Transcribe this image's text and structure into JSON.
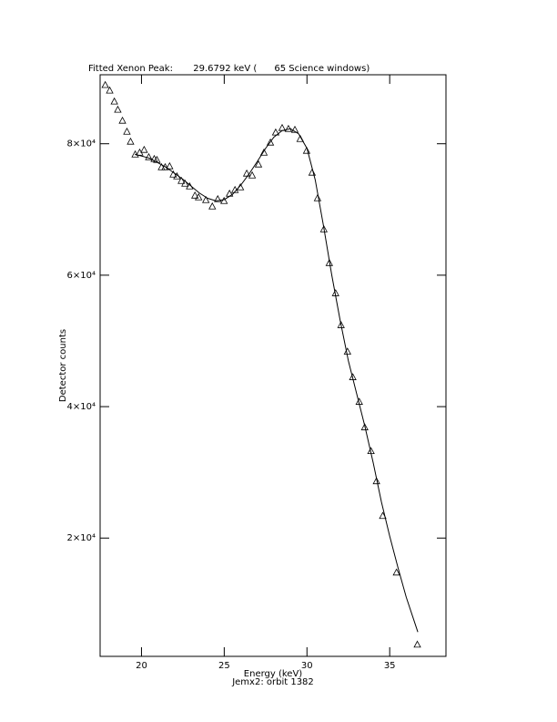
{
  "chart_data": {
    "type": "scatter",
    "title": "Fitted Xenon Peak:       29.6792 keV (      65 Science windows)",
    "x_label": "Energy (keV)",
    "subtitle": "Jemx2: orbit 1382",
    "y_label": "Detector counts",
    "xlim": [
      17.5,
      38.4
    ],
    "ylim": [
      2000,
      90500
    ],
    "xticks": [
      20,
      25,
      30,
      35
    ],
    "yticks": [
      {
        "value": 20000,
        "label": "2×10⁴"
      },
      {
        "value": 40000,
        "label": "4×10⁴"
      },
      {
        "value": 60000,
        "label": "6×10⁴"
      },
      {
        "value": 80000,
        "label": "8×10⁴"
      }
    ],
    "series": [
      {
        "type": "scatter",
        "marker": "triangle",
        "color": "#000000",
        "x": [
          17.81,
          18.08,
          18.36,
          18.57,
          18.85,
          19.12,
          19.34,
          19.62,
          19.89,
          20.16,
          20.44,
          20.77,
          20.93,
          21.21,
          21.43,
          21.7,
          21.92,
          22.14,
          22.41,
          22.63,
          22.91,
          23.23,
          23.45,
          23.89,
          24.28,
          24.61,
          24.99,
          25.32,
          25.65,
          25.98,
          26.36,
          26.69,
          27.07,
          27.4,
          27.79,
          28.11,
          28.5,
          28.88,
          29.27,
          29.59,
          29.98,
          30.31,
          30.64,
          31.02,
          31.35,
          31.73,
          32.06,
          32.45,
          32.77,
          33.16,
          33.49,
          33.87,
          34.2,
          34.58,
          35.41,
          36.67
        ],
        "values": [
          88900,
          88060,
          86390,
          85140,
          83470,
          81800,
          80280,
          78330,
          78610,
          79030,
          77920,
          77640,
          77500,
          76390,
          76390,
          76530,
          75280,
          75000,
          74310,
          73890,
          73470,
          72080,
          71810,
          71390,
          70420,
          71530,
          71250,
          72360,
          72920,
          73330,
          75420,
          75140,
          76810,
          78610,
          80140,
          81670,
          82360,
          82220,
          82080,
          80690,
          78890,
          75560,
          71670,
          66940,
          61810,
          57220,
          52360,
          48330,
          44440,
          40690,
          36810,
          33190,
          28610,
          23330,
          14720,
          3750
        ]
      },
      {
        "type": "line",
        "color": "#000000",
        "x": [
          19.6,
          20.5,
          21.5,
          22.5,
          23.5,
          24.0,
          24.5,
          25.0,
          25.5,
          26.0,
          26.5,
          27.0,
          27.5,
          28.0,
          28.5,
          29.0,
          29.5,
          30.0,
          30.5,
          31.0,
          31.5,
          32.0,
          32.5,
          33.0,
          33.5,
          34.0,
          34.5,
          35.0,
          35.5,
          36.0,
          36.7
        ],
        "values": [
          78400,
          77800,
          76400,
          74600,
          72500,
          71700,
          71300,
          71500,
          72300,
          73700,
          75400,
          77300,
          79300,
          81000,
          82000,
          82300,
          81500,
          79300,
          74500,
          67500,
          60000,
          53200,
          47000,
          42000,
          37000,
          31500,
          25500,
          20300,
          15500,
          11000,
          5700
        ]
      }
    ]
  }
}
